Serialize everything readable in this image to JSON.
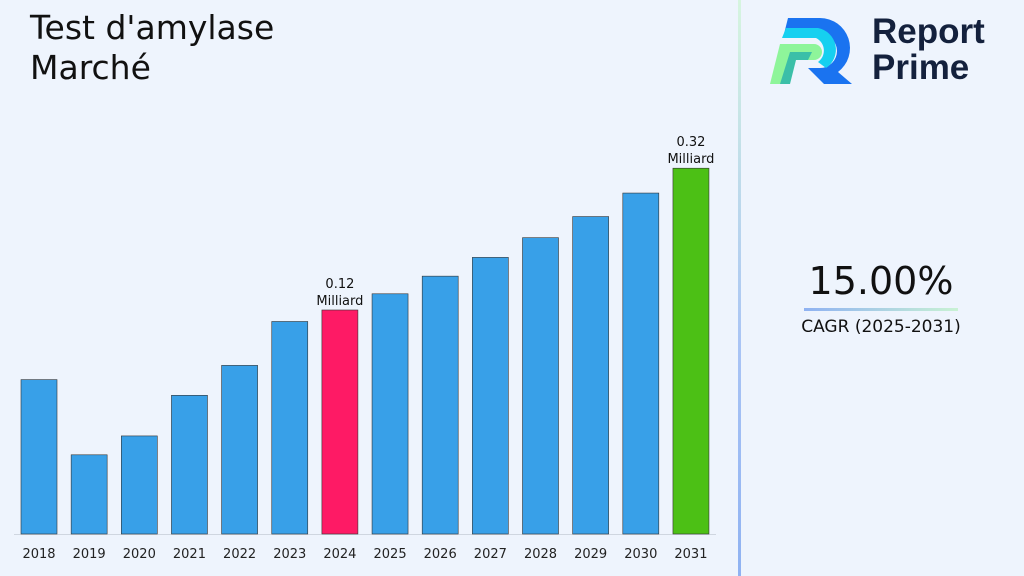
{
  "title_line1": "Test d'amylase",
  "title_line2": "Marché",
  "logo": {
    "line1": "Report",
    "line2": "Prime"
  },
  "cagr": {
    "value": "15.00%",
    "label": "CAGR (2025-2031)"
  },
  "colors": {
    "bar": "#38a0e8",
    "highlight_2024": "#fe1a65",
    "highlight_2031": "#4cc015"
  },
  "chart_data": {
    "type": "bar",
    "title": "Test d'amylase Marché",
    "categories": [
      "2018",
      "2019",
      "2020",
      "2021",
      "2022",
      "2023",
      "2024",
      "2025",
      "2026",
      "2027",
      "2028",
      "2029",
      "2030",
      "2031"
    ],
    "values": [
      0.057,
      0.015,
      0.023,
      0.046,
      0.068,
      0.108,
      0.12,
      0.138,
      0.159,
      0.183,
      0.21,
      0.241,
      0.278,
      0.32
    ],
    "unit": "Milliard",
    "data_labels": [
      {
        "category": "2024",
        "value": "0.12",
        "unit": "Milliard"
      },
      {
        "category": "2031",
        "value": "0.32",
        "unit": "Milliard"
      }
    ],
    "grid": false,
    "y_axis_visible": false
  }
}
